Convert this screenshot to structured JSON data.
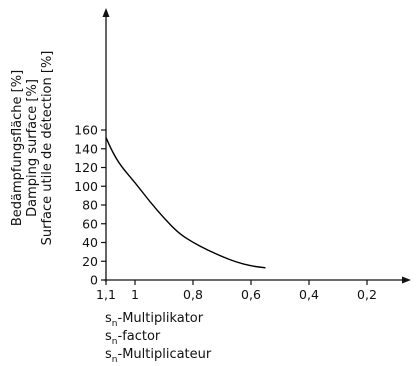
{
  "chart_data": {
    "type": "line",
    "x_axis": {
      "reversed": true,
      "xlim": [
        1.1,
        0.15
      ],
      "ticks": [
        1.1,
        1,
        0.8,
        0.6,
        0.4,
        0.2
      ],
      "tick_labels": [
        "1,1",
        "1",
        "0,8",
        "0,6",
        "0,4",
        "0,2"
      ],
      "label_lines": [
        {
          "prefix": "s",
          "sub": "n",
          "text": "-Multiplikator"
        },
        {
          "prefix": "s",
          "sub": "n",
          "text": "-factor"
        },
        {
          "prefix": "s",
          "sub": "n",
          "text": "-Multiplicateur"
        }
      ]
    },
    "y_axis": {
      "ylim": [
        0,
        170
      ],
      "ticks": [
        0,
        20,
        40,
        60,
        80,
        100,
        120,
        140,
        160
      ],
      "tick_labels": [
        "0",
        "20",
        "40",
        "60",
        "80",
        "100",
        "120",
        "140",
        "160"
      ],
      "label_lines": [
        "Bedämpfungsfläche [%]",
        "Damping surface [%]",
        "Surface utile de détection [%]"
      ]
    },
    "series": [
      {
        "color": "#000000",
        "x": [
          1.1,
          1.08,
          1.05,
          1.0,
          0.95,
          0.9,
          0.85,
          0.8,
          0.75,
          0.7,
          0.65,
          0.6,
          0.55
        ],
        "y": [
          152,
          138,
          122,
          104,
          84,
          66,
          50,
          40,
          32,
          25,
          19,
          15,
          13
        ]
      }
    ],
    "grid": false,
    "legend": "none"
  }
}
